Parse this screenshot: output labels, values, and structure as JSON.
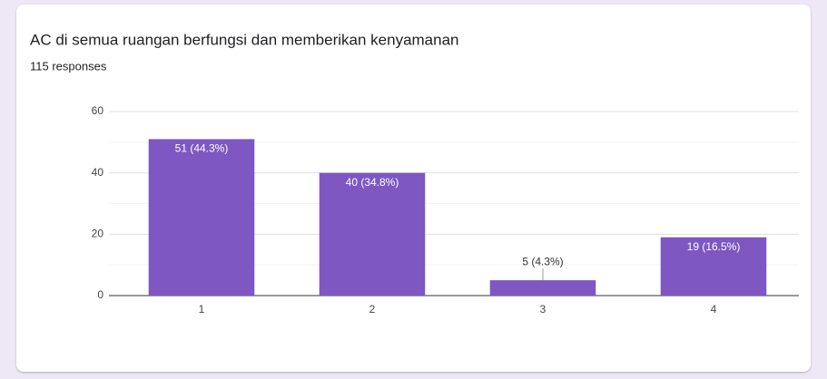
{
  "chart_data": {
    "type": "bar",
    "title": "AC di semua ruangan berfungsi dan memberikan kenyamanan",
    "subtitle": "115 responses",
    "categories": [
      "1",
      "2",
      "3",
      "4"
    ],
    "values": [
      51,
      40,
      5,
      19
    ],
    "value_labels": [
      "51 (44.3%)",
      "40 (34.8%)",
      "5 (4.3%)",
      "19 (16.5%)"
    ],
    "color": "#7e57c2",
    "ylim": [
      0,
      60
    ],
    "yticks": [
      0,
      20,
      40,
      60
    ],
    "minor_yticks": [
      10,
      30,
      50
    ],
    "grid": true
  }
}
